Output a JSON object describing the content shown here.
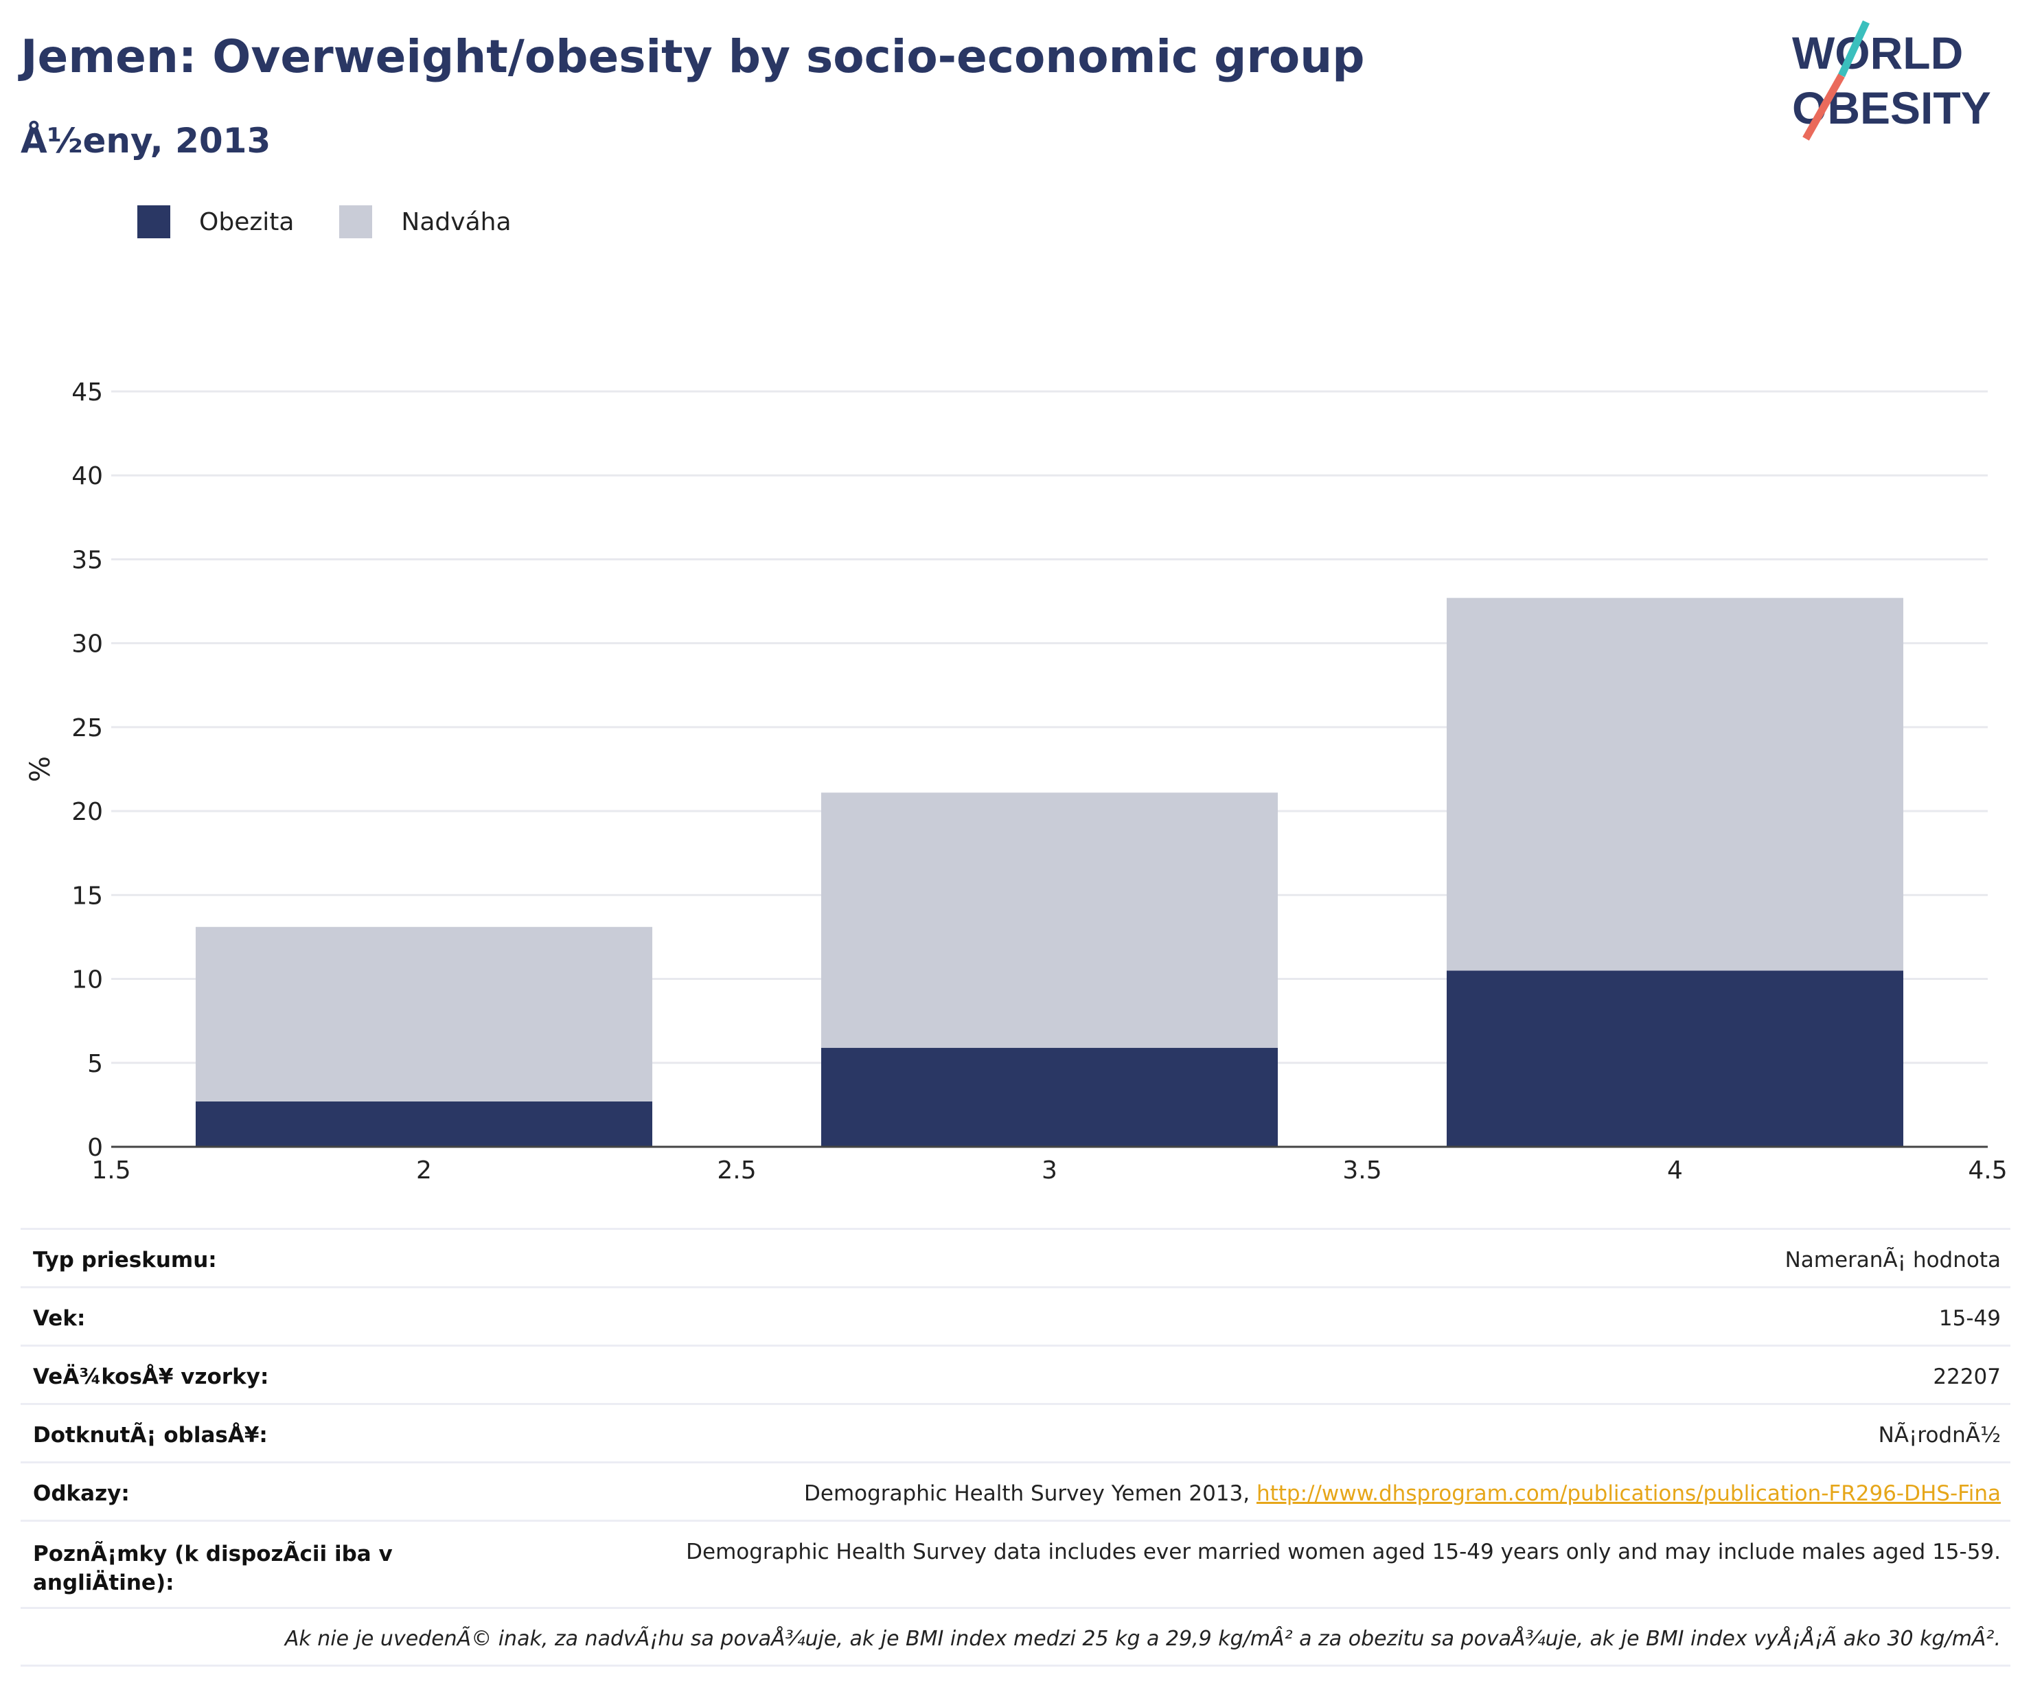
{
  "header": {
    "title": "Jemen: Overweight/obesity by socio-economic group",
    "subtitle": "Å½eny, 2013"
  },
  "logo": {
    "line1": "WORLD",
    "line2": "OBESITY",
    "accent_teal": "#3bbfbd",
    "accent_coral": "#ea6a5b",
    "text_color": "#2a3764"
  },
  "legend": {
    "items": [
      {
        "label": "Obezita",
        "color": "#2a3764"
      },
      {
        "label": "Nadváha",
        "color": "#c9ccd7"
      }
    ]
  },
  "chart_data": {
    "type": "bar",
    "stacked": true,
    "x": [
      2,
      3,
      4
    ],
    "bar_width": 0.73,
    "series": [
      {
        "name": "Obezita",
        "color": "#2a3764",
        "values": [
          2.7,
          5.9,
          10.5
        ]
      },
      {
        "name": "Nadváha",
        "color": "#c9ccd7",
        "values": [
          10.4,
          15.2,
          22.2
        ]
      }
    ],
    "xlim": [
      1.5,
      4.5
    ],
    "xticks": [
      "1.5",
      "2",
      "2.5",
      "3",
      "3.5",
      "4",
      "4.5"
    ],
    "ylim": [
      0,
      45
    ],
    "yticks": [
      "0",
      "5",
      "10",
      "15",
      "20",
      "25",
      "30",
      "35",
      "40",
      "45"
    ],
    "ylabel": "%",
    "grid": true,
    "legend_position": "top-left"
  },
  "info": {
    "survey_type": {
      "label": "Typ prieskumu:",
      "value": "NameranÃ¡ hodnota"
    },
    "age": {
      "label": "Vek:",
      "value": "15-49"
    },
    "sample": {
      "label": "VeÄ¾kosÅ¥ vzorky:",
      "value": "22207"
    },
    "area": {
      "label": "DotknutÃ¡ oblasÅ¥:",
      "value": "NÃ¡rodnÃ½"
    },
    "refs": {
      "label": "Odkazy:",
      "text": "Demographic Health Survey Yemen 2013, ",
      "link": "http://www.dhsprogram.com/publications/publication-FR296-DHS-Fina"
    },
    "notes": {
      "label": "PoznÃ¡mky (k dispozÃ­cii iba v angliÄtine):",
      "value": "Demographic Health Survey data includes ever married women aged 15-49 years only and may include males aged 15-59."
    },
    "footnote": "Ak nie je uvedenÃ© inak, za nadvÃ¡hu sa povaÅ¾uje, ak je BMI index medzi 25 kg a 29,9 kg/mÂ² a za obezitu sa povaÅ¾uje, ak je BMI index vyÅ¡Å¡Ã­ ako 30 kg/mÂ²."
  }
}
